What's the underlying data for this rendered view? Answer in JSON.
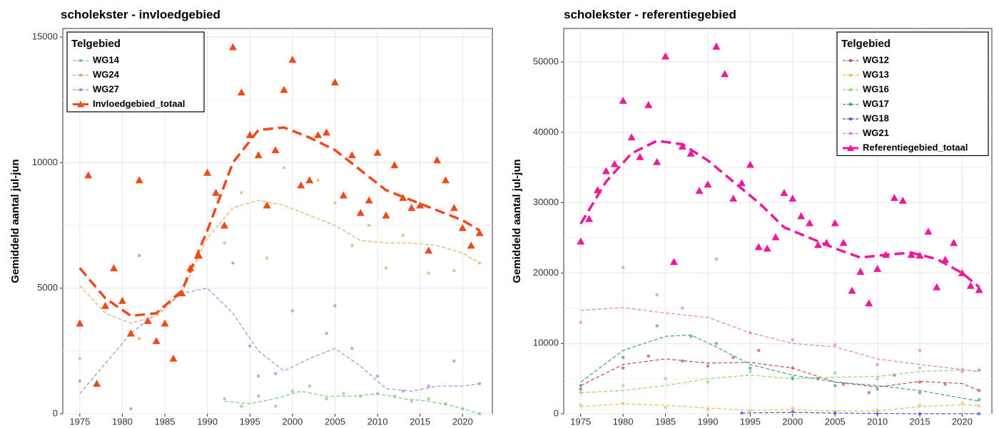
{
  "chart_data": [
    {
      "type": "scatter-smooth",
      "title": "scholekster - invloedgebied",
      "y_label": "Gemiddeld aantal jul-jun",
      "xlim": [
        1973,
        2023.5
      ],
      "xticks": [
        1975,
        1980,
        1985,
        1990,
        1995,
        2000,
        2005,
        2010,
        2015,
        2020
      ],
      "ylim": [
        0,
        15340
      ],
      "yticks": [
        0,
        5000,
        10000,
        15000
      ],
      "grid": true,
      "legend_title": "Telgebied",
      "legend_position": "top-left",
      "series": [
        {
          "name": "WG14",
          "color": "#7ec97e",
          "marker": "circle",
          "x": [
            1992,
            1994,
            1996,
            1998,
            2000,
            2002,
            2004,
            2006,
            2008,
            2010,
            2012,
            2014,
            2016,
            2018,
            2020,
            2022
          ],
          "values": [
            600,
            300,
            700,
            300,
            900,
            1100,
            600,
            800,
            700,
            800,
            700,
            500,
            600,
            400,
            200,
            0
          ],
          "smooth_x": [
            1992,
            1995,
            1998,
            2001,
            2004,
            2007,
            2010,
            2013,
            2016,
            2019,
            2022
          ],
          "smooth": [
            500,
            400,
            600,
            900,
            700,
            700,
            800,
            600,
            500,
            300,
            0
          ]
        },
        {
          "name": "WG24",
          "color": "#e8a868",
          "marker": "circle",
          "x": [
            1975,
            1982,
            1992,
            1994,
            1997,
            1999,
            2001,
            2003,
            2005,
            2007,
            2009,
            2011,
            2013,
            2016,
            2019,
            2022
          ],
          "values": [
            2200,
            3000,
            6800,
            8800,
            6200,
            9800,
            9100,
            9300,
            8400,
            6700,
            7500,
            5800,
            7100,
            5600,
            5700,
            6000
          ],
          "smooth_x": [
            1975,
            1978,
            1981,
            1984,
            1987,
            1990,
            1993,
            1996,
            1999,
            2002,
            2005,
            2008,
            2011,
            2014,
            2017,
            2020,
            2022
          ],
          "smooth": [
            5100,
            4000,
            3600,
            3900,
            4800,
            7000,
            8200,
            8500,
            8300,
            7900,
            7500,
            6900,
            6800,
            6800,
            6700,
            6400,
            6000
          ]
        },
        {
          "name": "WG27",
          "color": "#9a8fe0",
          "marker": "circle",
          "x": [
            1975,
            1981,
            1982,
            1993,
            1995,
            1996,
            1998,
            2000,
            2004,
            2005,
            2007,
            2010,
            2013,
            2016,
            2019,
            2022
          ],
          "values": [
            1300,
            200,
            6300,
            6000,
            2700,
            1500,
            1600,
            4100,
            3200,
            4300,
            2600,
            1500,
            900,
            1100,
            2100,
            1200
          ],
          "smooth_x": [
            1975,
            1978,
            1981,
            1984,
            1987,
            1990,
            1993,
            1996,
            1999,
            2002,
            2005,
            2008,
            2011,
            2014,
            2017,
            2020,
            2022
          ],
          "smooth": [
            800,
            2000,
            3200,
            4000,
            4800,
            5000,
            4000,
            2500,
            1700,
            2200,
            2600,
            1900,
            1000,
            900,
            1100,
            1100,
            1200
          ]
        },
        {
          "name": "Invloedgebied_totaal",
          "color": "#f04a1a",
          "marker": "triangle",
          "x": [
            1975,
            1976,
            1977,
            1978,
            1979,
            1980,
            1981,
            1982,
            1983,
            1984,
            1985,
            1986,
            1987,
            1988,
            1989,
            1990,
            1991,
            1992,
            1993,
            1994,
            1995,
            1996,
            1997,
            1998,
            1999,
            2000,
            2001,
            2002,
            2003,
            2004,
            2005,
            2006,
            2007,
            2008,
            2009,
            2010,
            2011,
            2012,
            2013,
            2014,
            2015,
            2016,
            2017,
            2018,
            2019,
            2020,
            2021,
            2022
          ],
          "values": [
            3600,
            9500,
            1200,
            4300,
            5800,
            4500,
            3200,
            9300,
            3700,
            2900,
            3600,
            2200,
            4800,
            5800,
            6300,
            9600,
            8800,
            7500,
            14600,
            12800,
            11100,
            10300,
            8300,
            10500,
            12900,
            14100,
            9100,
            9300,
            11100,
            11200,
            13200,
            8700,
            10300,
            8000,
            8500,
            10400,
            7900,
            9900,
            8600,
            8200,
            8300,
            6500,
            10100,
            9300,
            8200,
            7400,
            6700,
            7200
          ],
          "smooth_x": [
            1975,
            1978,
            1981,
            1984,
            1987,
            1990,
            1993,
            1996,
            1999,
            2002,
            2005,
            2008,
            2011,
            2014,
            2017,
            2020,
            2022
          ],
          "smooth": [
            5800,
            4600,
            3900,
            4000,
            4900,
            7300,
            10000,
            11300,
            11400,
            11000,
            10500,
            9700,
            8900,
            8500,
            8100,
            7700,
            7300
          ]
        }
      ]
    },
    {
      "type": "scatter-smooth",
      "title": "scholekster - referentiegebied",
      "y_label": "Gemiddeld aantal jul-jun",
      "xlim": [
        1973,
        2023.5
      ],
      "xticks": [
        1975,
        1980,
        1985,
        1990,
        1995,
        2000,
        2005,
        2010,
        2015,
        2020
      ],
      "ylim": [
        0,
        54760
      ],
      "yticks": [
        0,
        10000,
        20000,
        30000,
        40000,
        50000
      ],
      "grid": true,
      "legend_title": "Telgebied",
      "legend_position": "top-right",
      "series": [
        {
          "name": "WG12",
          "color": "#c0504d",
          "marker": "circle",
          "x": [
            1975,
            1980,
            1983,
            1987,
            1990,
            1993,
            1996,
            2000,
            2003,
            2006,
            2009,
            2012,
            2015,
            2018,
            2022
          ],
          "values": [
            3500,
            6500,
            8200,
            7500,
            6800,
            8000,
            9000,
            6500,
            5000,
            4200,
            3000,
            5500,
            4500,
            4200,
            3300
          ],
          "smooth_x": [
            1975,
            1980,
            1985,
            1990,
            1995,
            2000,
            2005,
            2010,
            2015,
            2020,
            2022
          ],
          "smooth": [
            4000,
            7000,
            7800,
            7200,
            7300,
            6500,
            4500,
            3800,
            4600,
            4300,
            3300
          ]
        },
        {
          "name": "WG13",
          "color": "#e8c050",
          "marker": "circle",
          "x": [
            1975,
            1980,
            1985,
            1990,
            1995,
            2000,
            2005,
            2010,
            2015,
            2020,
            2022
          ],
          "values": [
            1200,
            1500,
            900,
            600,
            400,
            800,
            300,
            500,
            1200,
            1500,
            1100
          ],
          "smooth_x": [
            1975,
            1980,
            1985,
            1990,
            1995,
            2000,
            2005,
            2010,
            2015,
            2020,
            2022
          ],
          "smooth": [
            1000,
            1400,
            1200,
            800,
            500,
            600,
            400,
            400,
            1000,
            1300,
            1200
          ]
        },
        {
          "name": "WG16",
          "color": "#8fdc70",
          "marker": "circle",
          "x": [
            1975,
            1980,
            1985,
            1990,
            1995,
            2000,
            2005,
            2010,
            2015,
            2020,
            2022
          ],
          "values": [
            3000,
            4000,
            5000,
            4500,
            6000,
            5200,
            5800,
            5000,
            6500,
            6300,
            6200
          ],
          "smooth_x": [
            1975,
            1980,
            1985,
            1990,
            1995,
            2000,
            2005,
            2010,
            2015,
            2020,
            2022
          ],
          "smooth": [
            3000,
            3300,
            4000,
            5000,
            5500,
            5000,
            5200,
            5300,
            6000,
            6200,
            6000
          ]
        },
        {
          "name": "WG17",
          "color": "#3a9e9a",
          "marker": "circle",
          "x": [
            1975,
            1980,
            1984,
            1988,
            1991,
            1995,
            2000,
            2005,
            2010,
            2015,
            2022
          ],
          "values": [
            4000,
            8000,
            12500,
            11000,
            10000,
            6500,
            5000,
            4000,
            3500,
            3000,
            2000
          ],
          "smooth_x": [
            1975,
            1980,
            1985,
            1988,
            1991,
            1995,
            2000,
            2005,
            2010,
            2015,
            2022
          ],
          "smooth": [
            4500,
            9000,
            11000,
            11200,
            9500,
            7000,
            5500,
            4500,
            4000,
            3300,
            1800
          ]
        },
        {
          "name": "WG18",
          "color": "#5a4ed8",
          "marker": "circle",
          "x": [
            1994,
            2000,
            2005,
            2010,
            2015,
            2022
          ],
          "values": [
            100,
            300,
            100,
            50,
            0,
            0
          ],
          "smooth_x": [
            1994,
            2000,
            2005,
            2010,
            2015,
            2022
          ],
          "smooth": [
            100,
            200,
            100,
            50,
            0,
            0
          ]
        },
        {
          "name": "WG21",
          "color": "#e37fd6",
          "marker": "circle",
          "x": [
            1975,
            1980,
            1984,
            1987,
            1991,
            1995,
            2000,
            2005,
            2010,
            2015,
            2020,
            2022
          ],
          "values": [
            13000,
            20800,
            16900,
            15000,
            22000,
            11500,
            10500,
            9800,
            7000,
            9000,
            6000,
            6200
          ],
          "smooth_x": [
            1975,
            1980,
            1985,
            1990,
            1995,
            2000,
            2005,
            2010,
            2015,
            2020,
            2022
          ],
          "smooth": [
            14700,
            15100,
            14300,
            13700,
            11500,
            10000,
            9500,
            7800,
            7000,
            6300,
            6000
          ]
        },
        {
          "name": "Referentiegebied_totaal",
          "color": "#f0189a",
          "marker": "triangle",
          "x": [
            1975,
            1976,
            1977,
            1978,
            1979,
            1980,
            1981,
            1982,
            1983,
            1984,
            1985,
            1986,
            1987,
            1988,
            1989,
            1990,
            1991,
            1992,
            1993,
            1994,
            1995,
            1996,
            1997,
            1998,
            1999,
            2000,
            2001,
            2002,
            2003,
            2004,
            2005,
            2006,
            2007,
            2008,
            2009,
            2010,
            2011,
            2012,
            2013,
            2014,
            2015,
            2016,
            2017,
            2018,
            2019,
            2020,
            2021,
            2022
          ],
          "values": [
            24500,
            27700,
            31800,
            34500,
            35500,
            44500,
            39300,
            36500,
            43900,
            35800,
            50800,
            21600,
            38000,
            37000,
            31700,
            32600,
            52200,
            48300,
            30600,
            32800,
            35400,
            23700,
            23500,
            25100,
            31400,
            30600,
            28100,
            27100,
            24000,
            24300,
            27100,
            24300,
            17500,
            20200,
            15700,
            20600,
            22600,
            30700,
            30300,
            22600,
            22500,
            25900,
            18000,
            21900,
            24300,
            20000,
            18200,
            17600
          ],
          "smooth_x": [
            1975,
            1978,
            1981,
            1984,
            1987,
            1990,
            1993,
            1996,
            1999,
            2002,
            2005,
            2008,
            2011,
            2014,
            2017,
            2020,
            2022
          ],
          "smooth": [
            27000,
            33000,
            37000,
            38800,
            38300,
            36000,
            33000,
            30000,
            26500,
            25000,
            23500,
            22200,
            22600,
            22900,
            22000,
            20000,
            18000
          ]
        }
      ]
    }
  ]
}
